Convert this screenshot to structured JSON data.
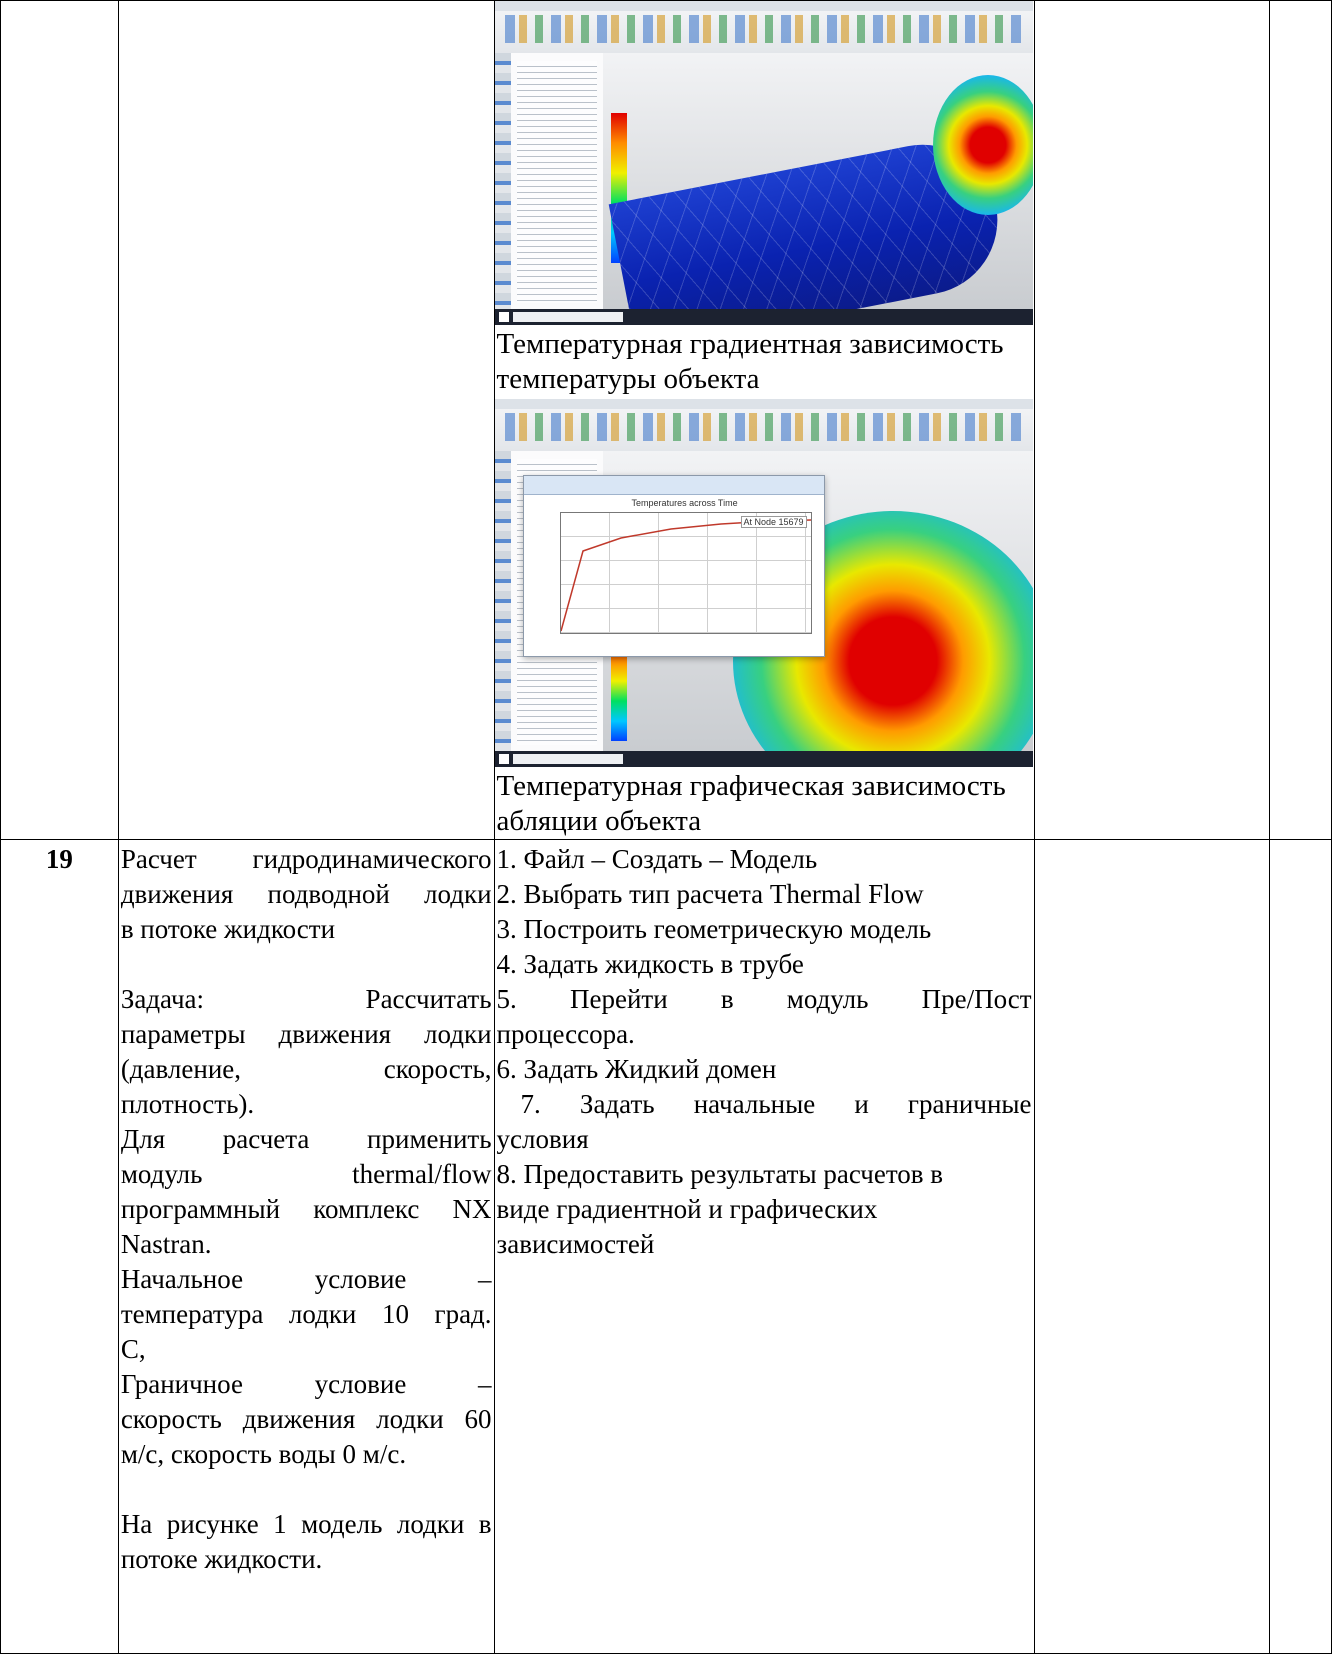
{
  "row_prev": {
    "caption1": "Температурная градиентная зависимость температуры объекта",
    "caption2": "Температурная графическая зависимость абляции объекта",
    "graph_title": "Temperatures across Time",
    "graph_legend": "At Node 15679"
  },
  "row19": {
    "number": "19",
    "title_lines": [
      "Расчет гидродинамического",
      "движения подводной лодки",
      "в потоке жидкости"
    ],
    "task_lines": [
      "Задача: Рассчитать",
      "параметры движения лодки",
      "(давление, скорость,",
      "плотность).",
      "Для расчета применить",
      "модуль thermal/flow",
      "программный комплекс NX",
      "Nastran.",
      "Начальное условие –",
      "температура лодки 10 град.",
      "С,",
      "Граничное условие –",
      "скорость движения лодки 60",
      "м/с, скорость воды 0 м/с."
    ],
    "figure_note_lines": [
      "На рисунке 1 модель лодки в",
      "потоке жидкости."
    ],
    "steps_lines": [
      "1. Файл – Создать – Модель",
      "2. Выбрать тип расчета Thermal Flow",
      "3. Построить геометрическую модель",
      "4. Задать жидкость в трубе",
      "5. Перейти в модуль Пре/Пост",
      "процессора.",
      "6. Задать Жидкий домен",
      " 7. Задать начальные и граничные",
      "условия",
      "8. Предоставить результаты расчетов в",
      "виде градиентной и графических",
      "зависимостей"
    ]
  }
}
